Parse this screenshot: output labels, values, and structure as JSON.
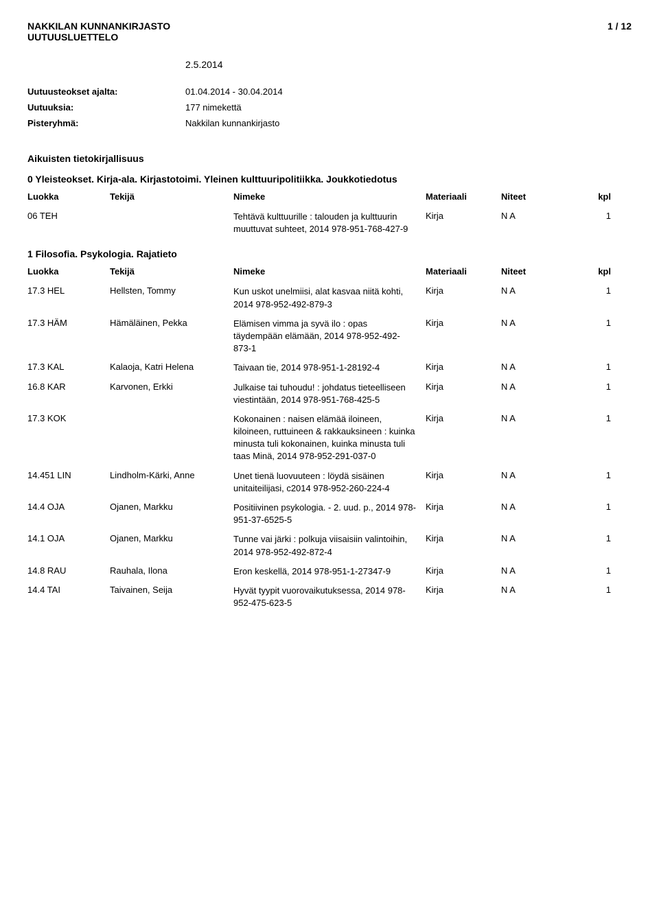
{
  "header": {
    "library": "NAKKILAN KUNNANKIRJASTO",
    "page": "1 / 12",
    "subtitle": "UUTUUSLUETTELO",
    "date": "2.5.2014"
  },
  "meta": {
    "rows": [
      {
        "label": "Uutuusteokset ajalta:",
        "value": "01.04.2014 - 30.04.2014"
      },
      {
        "label": "Uutuuksia:",
        "value": "177 nimekettä"
      },
      {
        "label": "Pisteryhmä:",
        "value": "Nakkilan kunnankirjasto"
      }
    ]
  },
  "main_section": "Aikuisten tietokirjallisuus",
  "columns": {
    "luokka": "Luokka",
    "tekija": "Tekijä",
    "nimeke": "Nimeke",
    "materiaali": "Materiaali",
    "niteet": "Niteet",
    "kpl": "kpl"
  },
  "sections": [
    {
      "title": "0 Yleisteokset. Kirja-ala. Kirjastotoimi. Yleinen kulttuuripolitiikka. Joukkotiedotus",
      "rows": [
        {
          "luokka": "06 TEH",
          "tekija": "",
          "nimeke": "Tehtävä kulttuurille : talouden ja kulttuurin muuttuvat suhteet, 2014 978-951-768-427-9",
          "materiaali": "Kirja",
          "niteet": "N A",
          "kpl": "1"
        }
      ]
    },
    {
      "title": "1 Filosofia. Psykologia. Rajatieto",
      "rows": [
        {
          "luokka": "17.3 HEL",
          "tekija": "Hellsten, Tommy",
          "nimeke": "Kun uskot unelmiisi, alat kasvaa niitä kohti, 2014 978-952-492-879-3",
          "materiaali": "Kirja",
          "niteet": "N A",
          "kpl": "1"
        },
        {
          "luokka": "17.3 HÄM",
          "tekija": "Hämäläinen, Pekka",
          "nimeke": "Elämisen vimma ja syvä ilo : opas täydempään elämään, 2014 978-952-492-873-1",
          "materiaali": "Kirja",
          "niteet": "N A",
          "kpl": "1"
        },
        {
          "luokka": "17.3 KAL",
          "tekija": "Kalaoja, Katri Helena",
          "nimeke": "Taivaan tie, 2014 978-951-1-28192-4",
          "materiaali": "Kirja",
          "niteet": "N A",
          "kpl": "1"
        },
        {
          "luokka": "16.8 KAR",
          "tekija": "Karvonen, Erkki",
          "nimeke": "Julkaise tai tuhoudu! : johdatus tieteelliseen viestintään, 2014 978-951-768-425-5",
          "materiaali": "Kirja",
          "niteet": "N A",
          "kpl": "1"
        },
        {
          "luokka": "17.3 KOK",
          "tekija": "",
          "nimeke": "Kokonainen : naisen elämää iloineen, kiloineen, ruttuineen & rakkauksineen : kuinka minusta tuli kokonainen, kuinka minusta tuli taas Minä, 2014 978-952-291-037-0",
          "materiaali": "Kirja",
          "niteet": "N A",
          "kpl": "1"
        },
        {
          "luokka": "14.451 LIN",
          "tekija": "Lindholm-Kärki, Anne",
          "nimeke": "Unet tienä luovuuteen : löydä sisäinen unitaiteilijasi, c2014 978-952-260-224-4",
          "materiaali": "Kirja",
          "niteet": "N A",
          "kpl": "1"
        },
        {
          "luokka": "14.4 OJA",
          "tekija": "Ojanen, Markku",
          "nimeke": "Positiivinen psykologia. - 2. uud. p., 2014 978-951-37-6525-5",
          "materiaali": "Kirja",
          "niteet": "N A",
          "kpl": "1"
        },
        {
          "luokka": "14.1 OJA",
          "tekija": "Ojanen, Markku",
          "nimeke": "Tunne vai järki : polkuja viisaisiin valintoihin, 2014 978-952-492-872-4",
          "materiaali": "Kirja",
          "niteet": "N A",
          "kpl": "1"
        },
        {
          "luokka": "14.8 RAU",
          "tekija": "Rauhala, Ilona",
          "nimeke": "Eron keskellä, 2014 978-951-1-27347-9",
          "materiaali": "Kirja",
          "niteet": "N A",
          "kpl": "1"
        },
        {
          "luokka": "14.4 TAI",
          "tekija": "Taivainen, Seija",
          "nimeke": "Hyvät tyypit vuorovaikutuksessa, 2014 978-952-475-623-5",
          "materiaali": "Kirja",
          "niteet": "N A",
          "kpl": "1"
        }
      ]
    }
  ]
}
